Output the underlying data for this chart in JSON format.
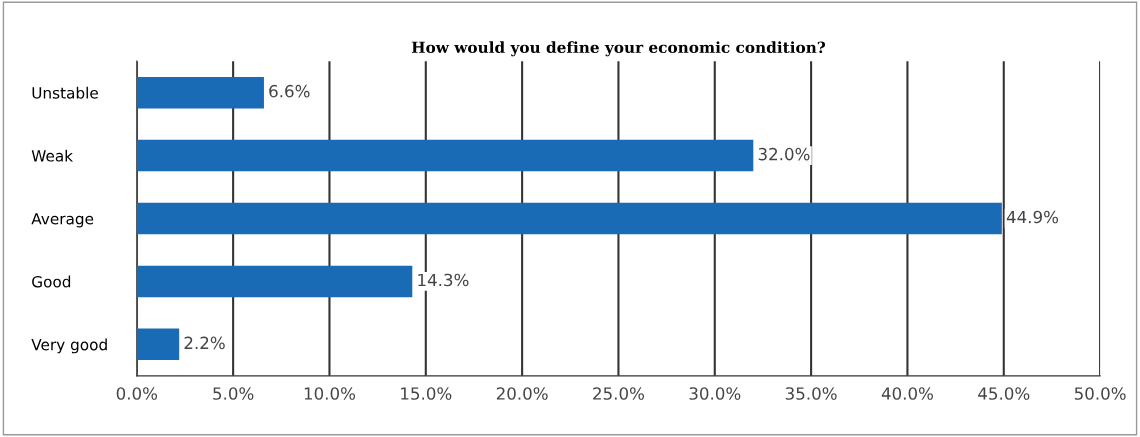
{
  "chart_data": {
    "type": "bar",
    "orientation": "horizontal",
    "title": "How would you define your economic condition?",
    "categories": [
      "Unstable",
      "Weak",
      "Average",
      "Good",
      "Very good"
    ],
    "values": [
      6.6,
      32.0,
      44.9,
      14.3,
      2.2
    ],
    "value_labels": [
      "6.6%",
      "32.0%",
      "44.9%",
      "14.3%",
      "2.2%"
    ],
    "color": "#1a6bb5",
    "xlim": [
      0,
      50
    ],
    "xticks": [
      {
        "value": 0,
        "label": "0.0%"
      },
      {
        "value": 5,
        "label": "5.0%"
      },
      {
        "value": 10,
        "label": "10.0%"
      },
      {
        "value": 15,
        "label": "15.0%"
      },
      {
        "value": 20,
        "label": "20.0%"
      },
      {
        "value": 25,
        "label": "25.0%"
      },
      {
        "value": 30,
        "label": "30.0%"
      },
      {
        "value": 35,
        "label": "35.0%"
      },
      {
        "value": 40,
        "label": "40.0%"
      },
      {
        "value": 45,
        "label": "45.0%"
      },
      {
        "value": 50,
        "label": "50.0%"
      }
    ],
    "grid": "x",
    "legend": false
  }
}
